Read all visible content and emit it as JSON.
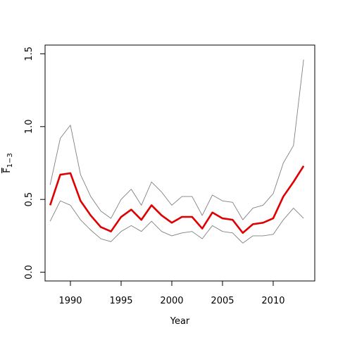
{
  "chart_data": {
    "type": "line",
    "title": "",
    "xlabel": "Year",
    "ylabel": {
      "base": "F",
      "subscript": "1−3"
    },
    "xlim": [
      1987.5,
      2014.1
    ],
    "ylim": [
      -0.06,
      1.56
    ],
    "x_ticks": [
      1990,
      1995,
      2000,
      2005,
      2010
    ],
    "y_ticks": [
      0.0,
      0.5,
      1.0,
      1.5
    ],
    "y_tick_labels": [
      "0.0",
      "0.5",
      "1.0",
      "1.5"
    ],
    "grid": false,
    "legend": "none",
    "x": [
      1988,
      1989,
      1990,
      1991,
      1992,
      1993,
      1994,
      1995,
      1996,
      1997,
      1998,
      1999,
      2000,
      2001,
      2002,
      2003,
      2004,
      2005,
      2006,
      2007,
      2008,
      2009,
      2010,
      2011,
      2012,
      2013
    ],
    "series": [
      {
        "role": "estimate",
        "color": "#e00000",
        "values": [
          0.46,
          0.67,
          0.68,
          0.49,
          0.39,
          0.31,
          0.28,
          0.38,
          0.43,
          0.36,
          0.46,
          0.39,
          0.34,
          0.38,
          0.38,
          0.3,
          0.41,
          0.37,
          0.36,
          0.27,
          0.33,
          0.34,
          0.37,
          0.52,
          0.62,
          0.73
        ]
      },
      {
        "role": "upper-bound",
        "color": "#808080",
        "values": [
          0.6,
          0.92,
          1.01,
          0.67,
          0.52,
          0.42,
          0.37,
          0.5,
          0.57,
          0.46,
          0.62,
          0.55,
          0.46,
          0.52,
          0.52,
          0.39,
          0.53,
          0.49,
          0.48,
          0.36,
          0.44,
          0.46,
          0.54,
          0.75,
          0.87,
          1.46
        ]
      },
      {
        "role": "lower-bound",
        "color": "#808080",
        "values": [
          0.35,
          0.49,
          0.46,
          0.36,
          0.29,
          0.23,
          0.21,
          0.28,
          0.32,
          0.28,
          0.35,
          0.28,
          0.25,
          0.27,
          0.28,
          0.23,
          0.32,
          0.28,
          0.27,
          0.2,
          0.25,
          0.25,
          0.26,
          0.36,
          0.44,
          0.37
        ]
      }
    ]
  }
}
